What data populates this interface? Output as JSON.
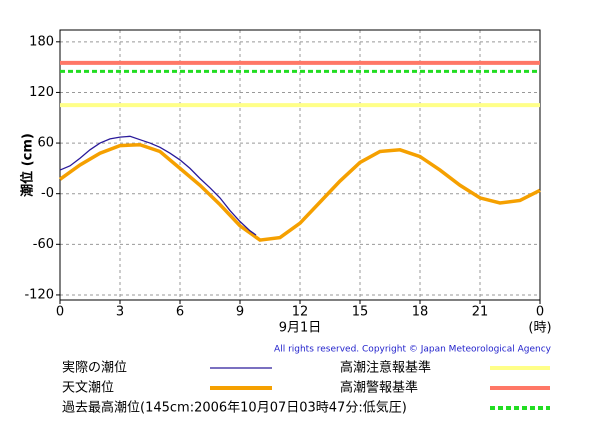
{
  "chart_data": {
    "type": "line",
    "ylabel": "潮位 (cm)",
    "xlabel": "9月1日",
    "xunit": "(時)",
    "copyright": "All rights reserved. Copyright © Japan Meteorological Agency",
    "xlim": [
      0,
      24
    ],
    "xticks": [
      0,
      3,
      6,
      9,
      12,
      15,
      18,
      21,
      {
        "value": 24,
        "label": "0"
      }
    ],
    "ylim": [
      -126,
      194
    ],
    "yticks": [
      180,
      120,
      60,
      {
        "value": 0,
        "label": "-0"
      },
      -60,
      -120
    ],
    "grid": true,
    "series": [
      {
        "name": "実際の潮位",
        "color": "#2a1a9a",
        "x": [
          0,
          0.5,
          1,
          1.5,
          2,
          2.5,
          3,
          3.5,
          4,
          4.5,
          5,
          5.5,
          6,
          6.5,
          7,
          7.5,
          8,
          8.5,
          9,
          9.5,
          9.8
        ],
        "values": [
          28,
          33,
          42,
          52,
          60,
          65,
          67,
          68,
          64,
          60,
          55,
          48,
          40,
          30,
          18,
          7,
          -5,
          -20,
          -33,
          -44,
          -49
        ]
      },
      {
        "name": "天文潮位",
        "color": "#f5a000",
        "x": [
          0,
          1,
          2,
          3,
          4,
          5,
          6,
          7,
          8,
          9,
          10,
          11,
          12,
          13,
          14,
          15,
          16,
          17,
          18,
          19,
          20,
          21,
          22,
          23,
          24
        ],
        "values": [
          17,
          34,
          48,
          57,
          58,
          50,
          30,
          10,
          -13,
          -38,
          -55,
          -52,
          -35,
          -10,
          15,
          37,
          50,
          52,
          44,
          28,
          10,
          -5,
          -11,
          -8,
          4
        ]
      }
    ],
    "thresholds": [
      {
        "name": "高潮注意報基準",
        "value": 105,
        "color": "#ffff88",
        "style": "solid"
      },
      {
        "name": "高潮警報基準",
        "value": 155,
        "color": "#ff7766",
        "style": "solid"
      },
      {
        "name": "過去最高潮位(145cm:2006年10月07日03時47分:低気圧)",
        "value": 145,
        "color": "#22dd22",
        "style": "dashed"
      }
    ]
  }
}
